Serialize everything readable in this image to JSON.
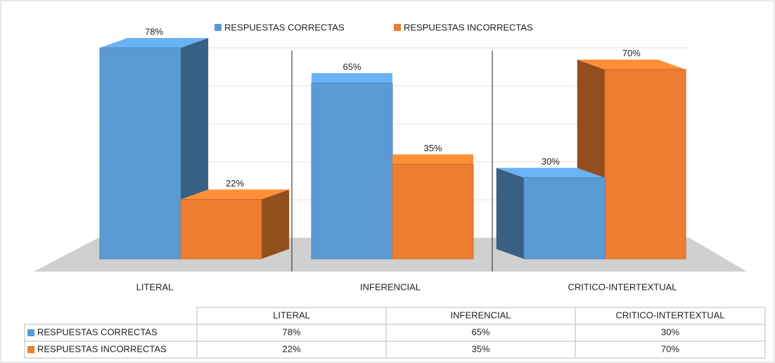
{
  "chart_data": {
    "type": "bar3d",
    "categories": [
      "LITERAL",
      "INFERENCIAL",
      "CRITICO-INTERTEXTUAL"
    ],
    "series": [
      {
        "name": "RESPUESTAS CORRECTAS",
        "color": "#5b9bd5",
        "values": [
          78,
          65,
          30
        ],
        "value_labels": [
          "78%",
          "65%",
          "30%"
        ]
      },
      {
        "name": "RESPUESTAS INCORRECTAS",
        "color": "#ed7d31",
        "values": [
          22,
          35,
          70
        ],
        "value_labels": [
          "22%",
          "35%",
          "70%"
        ]
      }
    ],
    "data_table": true
  }
}
